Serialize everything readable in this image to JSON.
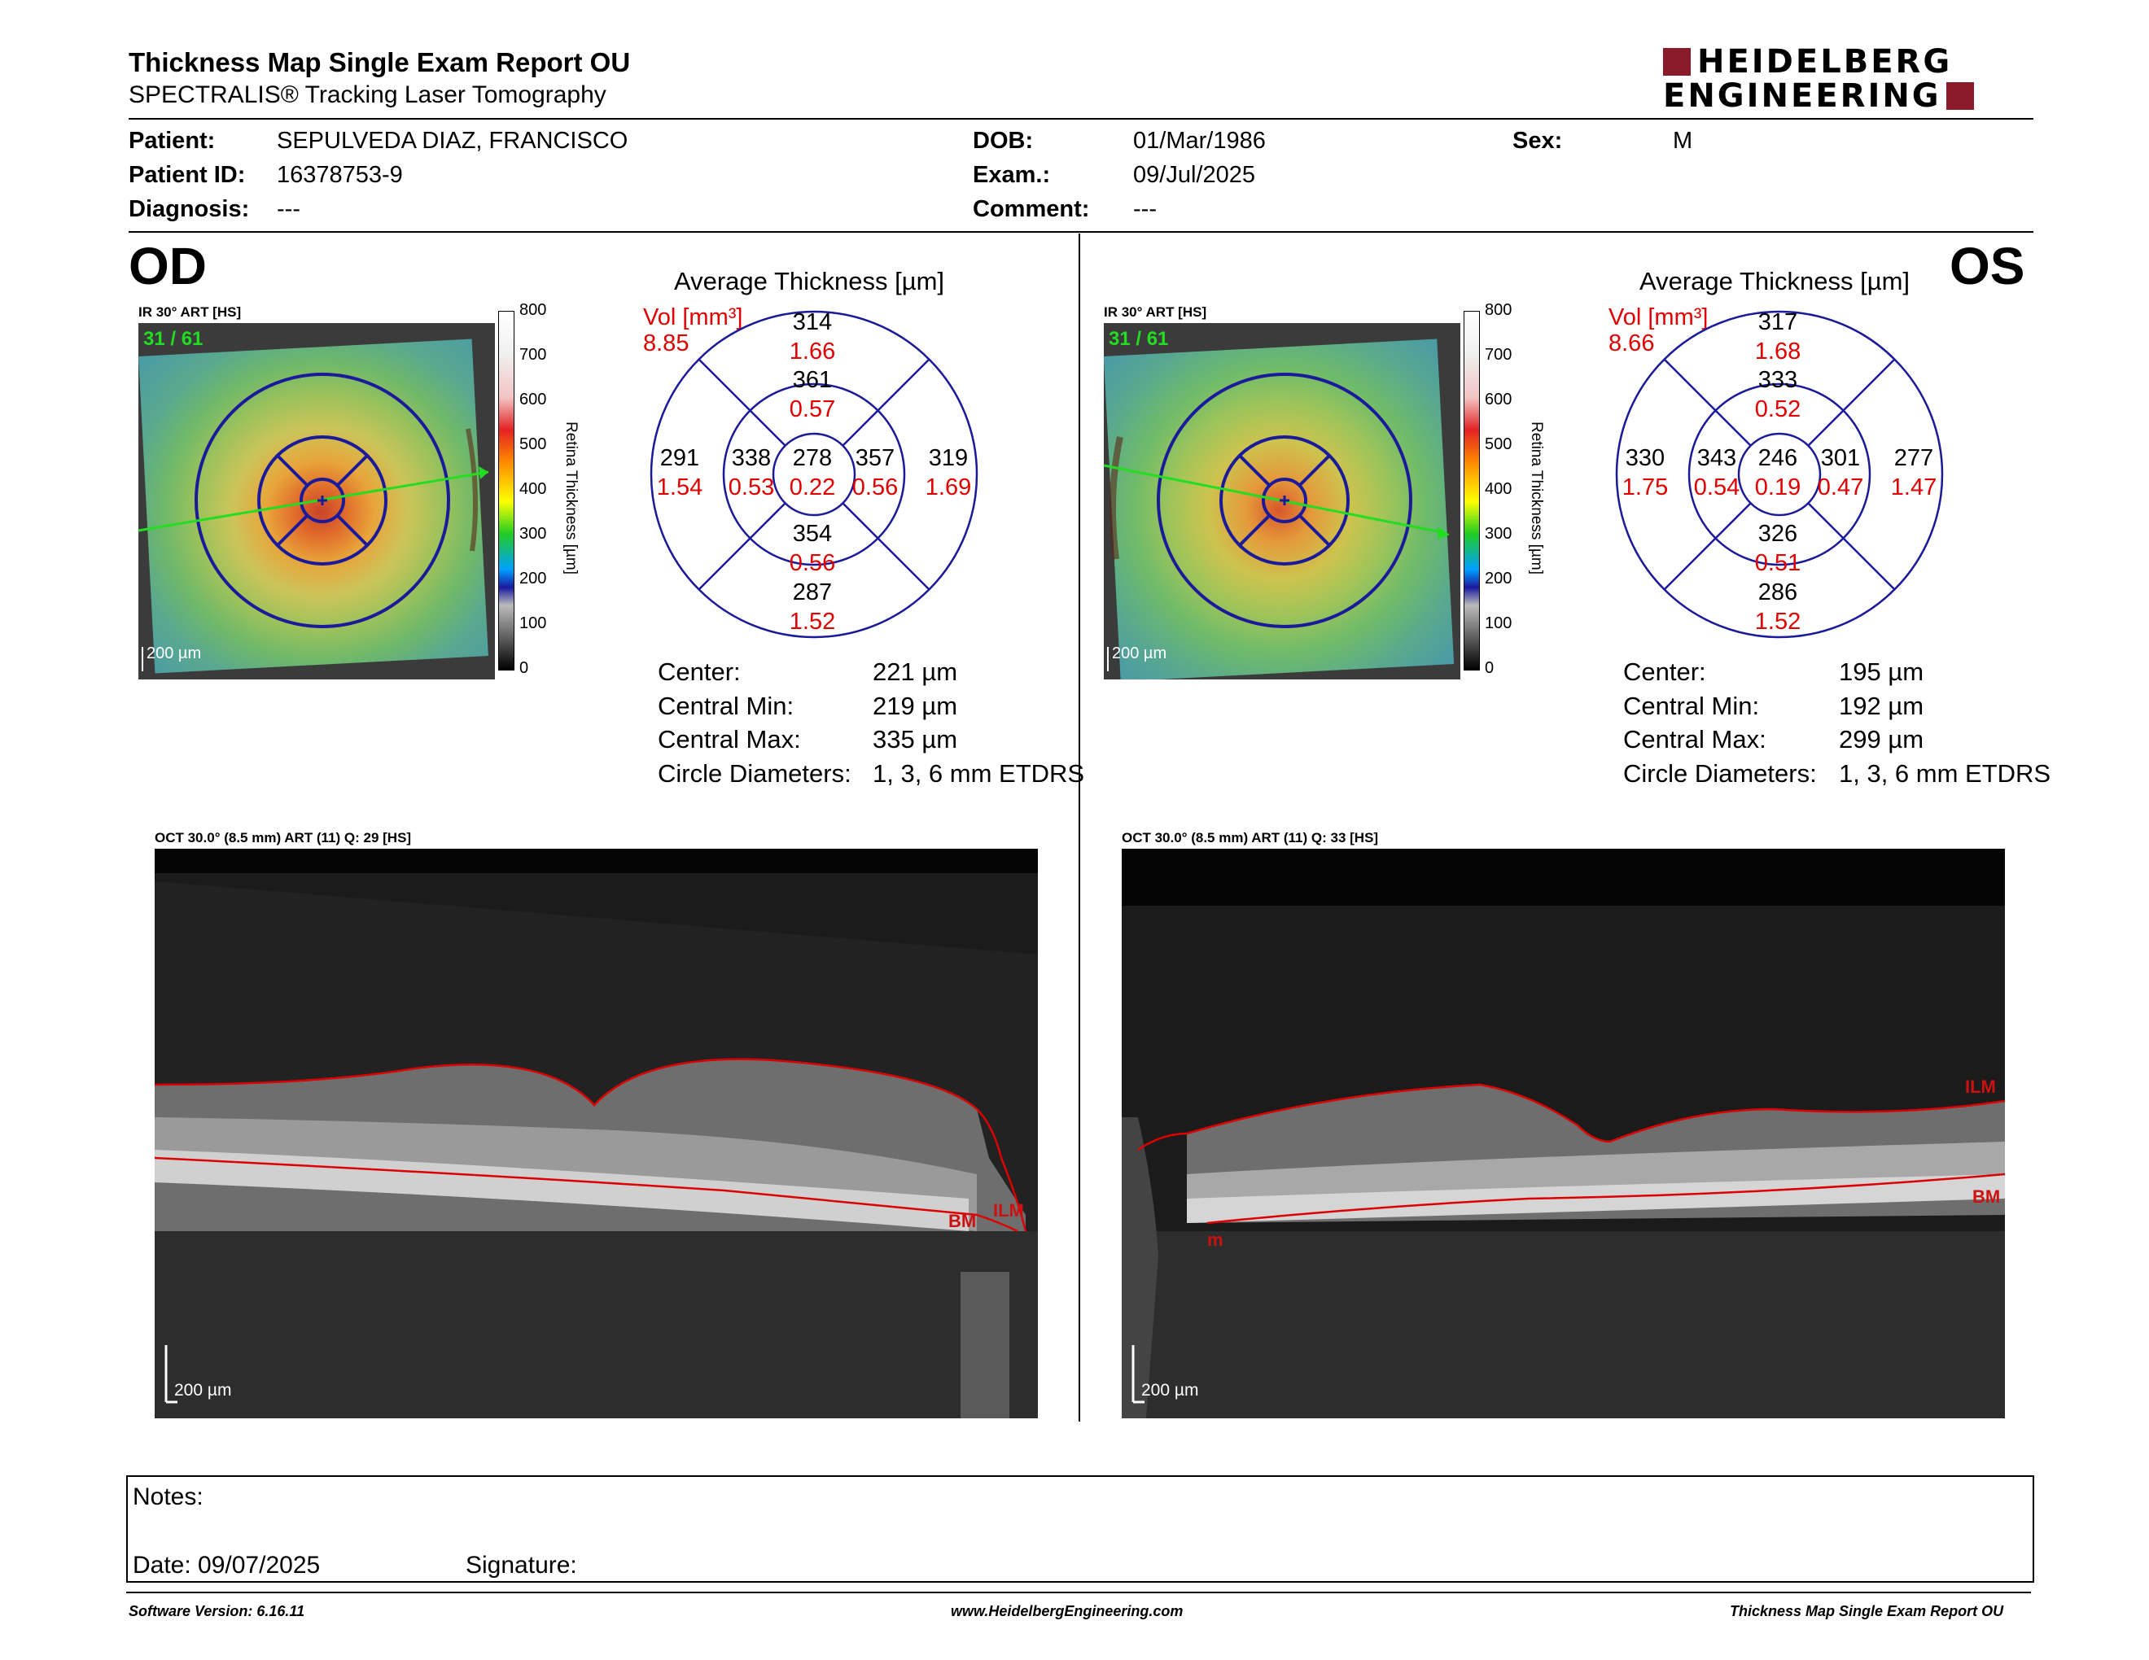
{
  "report": {
    "title": "Thickness Map Single Exam Report OU",
    "subtitle": "SPECTRALIS® Tracking Laser Tomography",
    "logo_line1": "HEIDELBERG",
    "logo_line2": "ENGINEERING",
    "brand_color": "#8b1a2b"
  },
  "patient": {
    "patient_label": "Patient:",
    "patient_value": "SEPULVEDA DIAZ, FRANCISCO",
    "id_label": "Patient ID:",
    "id_value": "16378753-9",
    "diagnosis_label": "Diagnosis:",
    "diagnosis_value": "---",
    "dob_label": "DOB:",
    "dob_value": "01/Mar/1986",
    "exam_label": "Exam.:",
    "exam_value": "09/Jul/2025",
    "comment_label": "Comment:",
    "comment_value": "---",
    "sex_label": "Sex:",
    "sex_value": "M"
  },
  "od": {
    "eye": "OD",
    "ir_label": "IR 30° ART [HS]",
    "frames": "31 / 61",
    "fundus_scale": "200 µm",
    "colorbar_title": "Retina Thickness [µm]",
    "colorbar_ticks": [
      "800",
      "700",
      "600",
      "500",
      "400",
      "300",
      "200",
      "100",
      "0"
    ],
    "etdrs_title": "Average Thickness [µm]",
    "vol_label": "Vol [mm³]",
    "vol_value": "8.85",
    "sectors": {
      "center_t": "278",
      "center_v": "0.22",
      "inner_sup_t": "361",
      "inner_sup_v": "0.57",
      "inner_inf_t": "354",
      "inner_inf_v": "0.56",
      "inner_left_t": "338",
      "inner_left_v": "0.53",
      "inner_right_t": "357",
      "inner_right_v": "0.56",
      "outer_sup_t": "314",
      "outer_sup_v": "1.66",
      "outer_inf_t": "287",
      "outer_inf_v": "1.52",
      "outer_left_t": "291",
      "outer_left_v": "1.54",
      "outer_right_t": "319",
      "outer_right_v": "1.69"
    },
    "stats": [
      {
        "label": "Center:",
        "value": "221 µm"
      },
      {
        "label": "Central Min:",
        "value": "219 µm"
      },
      {
        "label": "Central Max:",
        "value": "335 µm"
      },
      {
        "label": "Circle Diameters:",
        "value": "1, 3, 6 mm ETDRS"
      }
    ],
    "oct_label": "OCT 30.0° (8.5 mm) ART (11) Q: 29 [HS]",
    "oct_scale": "200 µm",
    "oct_ilm": "ILM",
    "oct_bm": "BM"
  },
  "os": {
    "eye": "OS",
    "ir_label": "IR 30° ART [HS]",
    "frames": "31 / 61",
    "fundus_scale": "200 µm",
    "colorbar_title": "Retina Thickness [µm]",
    "colorbar_ticks": [
      "800",
      "700",
      "600",
      "500",
      "400",
      "300",
      "200",
      "100",
      "0"
    ],
    "etdrs_title": "Average Thickness [µm]",
    "vol_label": "Vol [mm³]",
    "vol_value": "8.66",
    "sectors": {
      "center_t": "246",
      "center_v": "0.19",
      "inner_sup_t": "333",
      "inner_sup_v": "0.52",
      "inner_inf_t": "326",
      "inner_inf_v": "0.51",
      "inner_left_t": "343",
      "inner_left_v": "0.54",
      "inner_right_t": "301",
      "inner_right_v": "0.47",
      "outer_sup_t": "317",
      "outer_sup_v": "1.68",
      "outer_inf_t": "286",
      "outer_inf_v": "1.52",
      "outer_left_t": "330",
      "outer_left_v": "1.75",
      "outer_right_t": "277",
      "outer_right_v": "1.47"
    },
    "stats": [
      {
        "label": "Center:",
        "value": "195 µm"
      },
      {
        "label": "Central Min:",
        "value": "192 µm"
      },
      {
        "label": "Central Max:",
        "value": "299 µm"
      },
      {
        "label": "Circle Diameters:",
        "value": "1, 3, 6 mm ETDRS"
      }
    ],
    "oct_label": "OCT 30.0° (8.5 mm) ART (11) Q: 33 [HS]",
    "oct_scale": "200 µm",
    "oct_ilm": "ILM",
    "oct_bm": "BM",
    "oct_m": "m"
  },
  "notes": {
    "notes_label": "Notes:",
    "date_label": "Date: 09/07/2025",
    "signature_label": "Signature:"
  },
  "footer": {
    "software": "Software Version: 6.16.11",
    "website": "www.HeidelbergEngineering.com",
    "report_name": "Thickness Map Single Exam Report OU"
  }
}
